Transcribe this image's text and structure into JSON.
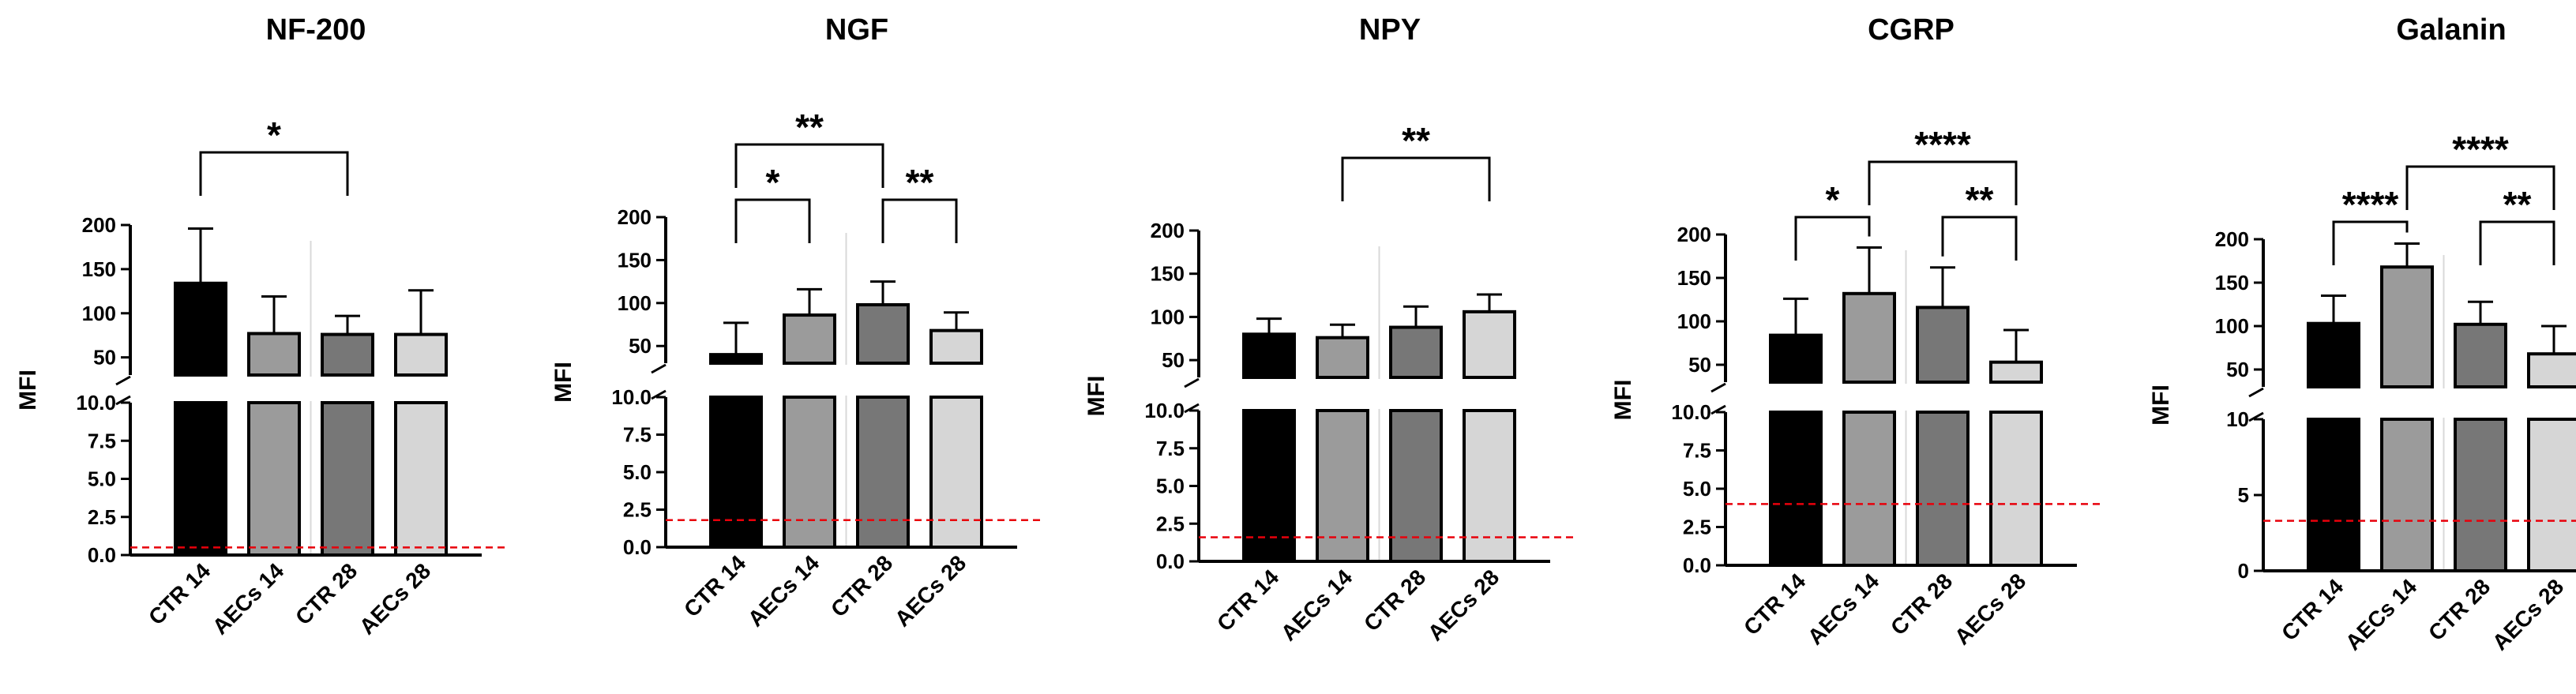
{
  "colors": {
    "bars": [
      "#000000",
      "#9b9b9b",
      "#777777",
      "#d6d6d6"
    ],
    "threshold": "#e8000b",
    "axis": "#000000"
  },
  "chart_data": [
    {
      "type": "bar",
      "title": "NF-200",
      "ylabel": "MFI",
      "categories": [
        "CTR 14",
        "AECs 14",
        "CTR 28",
        "AECs 28"
      ],
      "values": [
        134,
        77,
        76,
        76
      ],
      "errors": [
        62,
        42,
        21,
        50
      ],
      "threshold": 0.5,
      "lower_range": [
        0,
        10
      ],
      "lower_ticks": [
        "0.0",
        "2.5",
        "5.0",
        "7.5",
        "10.0"
      ],
      "upper_range": [
        30,
        200
      ],
      "upper_ticks": [
        "50",
        "100",
        "150",
        "200"
      ],
      "significance": [
        {
          "from": 0,
          "to": 2,
          "label": "*"
        }
      ]
    },
    {
      "type": "bar",
      "title": "NGF",
      "ylabel": "MFI",
      "categories": [
        "CTR 14",
        "AECs 14",
        "CTR 28",
        "AECs 28"
      ],
      "values": [
        40,
        86,
        98,
        68
      ],
      "errors": [
        37,
        30,
        27,
        21
      ],
      "threshold": 1.8,
      "lower_range": [
        0,
        10
      ],
      "lower_ticks": [
        "0.0",
        "2.5",
        "5.0",
        "7.5",
        "10.0"
      ],
      "upper_range": [
        30,
        200
      ],
      "upper_ticks": [
        "50",
        "100",
        "150",
        "200"
      ],
      "significance": [
        {
          "from": 0,
          "to": 1,
          "label": "*"
        },
        {
          "from": 2,
          "to": 3,
          "label": "**"
        },
        {
          "from": 0,
          "to": 2,
          "label": "**"
        }
      ]
    },
    {
      "type": "bar",
      "title": "NPY",
      "ylabel": "MFI",
      "categories": [
        "CTR 14",
        "AECs 14",
        "CTR 28",
        "AECs 28"
      ],
      "values": [
        80,
        76,
        88,
        106
      ],
      "errors": [
        18,
        15,
        24,
        20
      ],
      "threshold": 1.6,
      "lower_range": [
        0,
        10
      ],
      "lower_ticks": [
        "0.0",
        "2.5",
        "5.0",
        "7.5",
        "10.0"
      ],
      "upper_range": [
        30,
        200
      ],
      "upper_ticks": [
        "50",
        "100",
        "150",
        "200"
      ],
      "significance": [
        {
          "from": 1,
          "to": 3,
          "label": "**"
        }
      ]
    },
    {
      "type": "bar",
      "title": "CGRP",
      "ylabel": "MFI",
      "categories": [
        "CTR 14",
        "AECs 14",
        "CTR 28",
        "AECs 28"
      ],
      "values": [
        84,
        132,
        116,
        53
      ],
      "errors": [
        42,
        53,
        46,
        37
      ],
      "threshold": 4.0,
      "lower_range": [
        0,
        10
      ],
      "lower_ticks": [
        "0.0",
        "2.5",
        "5.0",
        "7.5",
        "10.0"
      ],
      "upper_range": [
        30,
        200
      ],
      "upper_ticks": [
        "50",
        "100",
        "150",
        "200"
      ],
      "significance": [
        {
          "from": 0,
          "to": 1,
          "label": "*"
        },
        {
          "from": 2,
          "to": 3,
          "label": "**"
        },
        {
          "from": 1,
          "to": 3,
          "label": "****"
        }
      ]
    },
    {
      "type": "bar",
      "title": "Galanin",
      "ylabel": "MFI",
      "categories": [
        "CTR 14",
        "AECs 14",
        "CTR 28",
        "AECs 28"
      ],
      "values": [
        103,
        168,
        102,
        68
      ],
      "errors": [
        32,
        27,
        26,
        32
      ],
      "threshold": 3.3,
      "lower_range": [
        0,
        10
      ],
      "lower_ticks": [
        "0",
        "5",
        "10"
      ],
      "upper_range": [
        30,
        200
      ],
      "upper_ticks": [
        "50",
        "100",
        "150",
        "200"
      ],
      "significance": [
        {
          "from": 0,
          "to": 1,
          "label": "****"
        },
        {
          "from": 2,
          "to": 3,
          "label": "**"
        },
        {
          "from": 1,
          "to": 3,
          "label": "****"
        }
      ]
    }
  ]
}
